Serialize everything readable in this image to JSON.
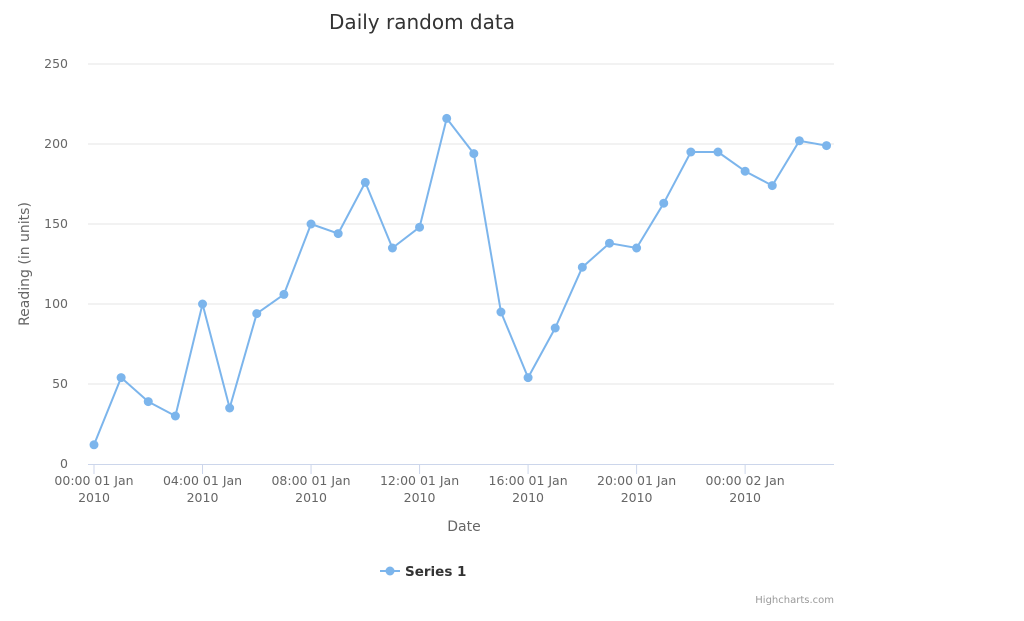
{
  "chart_data": {
    "type": "line",
    "title": "Daily random data",
    "xlabel": "Date",
    "ylabel": "Reading (in units)",
    "ylim": [
      0,
      250
    ],
    "yticks": [
      0,
      50,
      100,
      150,
      200,
      250
    ],
    "grid": true,
    "legend_position": "bottom-center",
    "x": [
      "2010-01-01 00:00",
      "2010-01-01 01:00",
      "2010-01-01 02:00",
      "2010-01-01 03:00",
      "2010-01-01 04:00",
      "2010-01-01 05:00",
      "2010-01-01 06:00",
      "2010-01-01 07:00",
      "2010-01-01 08:00",
      "2010-01-01 09:00",
      "2010-01-01 10:00",
      "2010-01-01 11:00",
      "2010-01-01 12:00",
      "2010-01-01 13:00",
      "2010-01-01 14:00",
      "2010-01-01 15:00",
      "2010-01-01 16:00",
      "2010-01-01 17:00",
      "2010-01-01 18:00",
      "2010-01-01 19:00",
      "2010-01-01 20:00",
      "2010-01-01 21:00",
      "2010-01-01 22:00",
      "2010-01-01 23:00",
      "2010-01-02 00:00",
      "2010-01-02 01:00",
      "2010-01-02 02:00",
      "2010-01-02 03:00"
    ],
    "xticks": [
      {
        "line1": "00:00 01 Jan",
        "line2": "2010",
        "index": 0
      },
      {
        "line1": "04:00 01 Jan",
        "line2": "2010",
        "index": 4
      },
      {
        "line1": "08:00 01 Jan",
        "line2": "2010",
        "index": 8
      },
      {
        "line1": "12:00 01 Jan",
        "line2": "2010",
        "index": 12
      },
      {
        "line1": "16:00 01 Jan",
        "line2": "2010",
        "index": 16
      },
      {
        "line1": "20:00 01 Jan",
        "line2": "2010",
        "index": 20
      },
      {
        "line1": "00:00 02 Jan",
        "line2": "2010",
        "index": 24
      }
    ],
    "series": [
      {
        "name": "Series 1",
        "color": "#7cb5ec",
        "values": [
          12,
          54,
          39,
          30,
          100,
          35,
          94,
          106,
          150,
          144,
          176,
          135,
          148,
          216,
          194,
          95,
          54,
          85,
          123,
          138,
          135,
          163,
          195,
          195,
          183,
          174,
          202,
          199
        ]
      }
    ]
  },
  "credits": "Highcharts.com"
}
